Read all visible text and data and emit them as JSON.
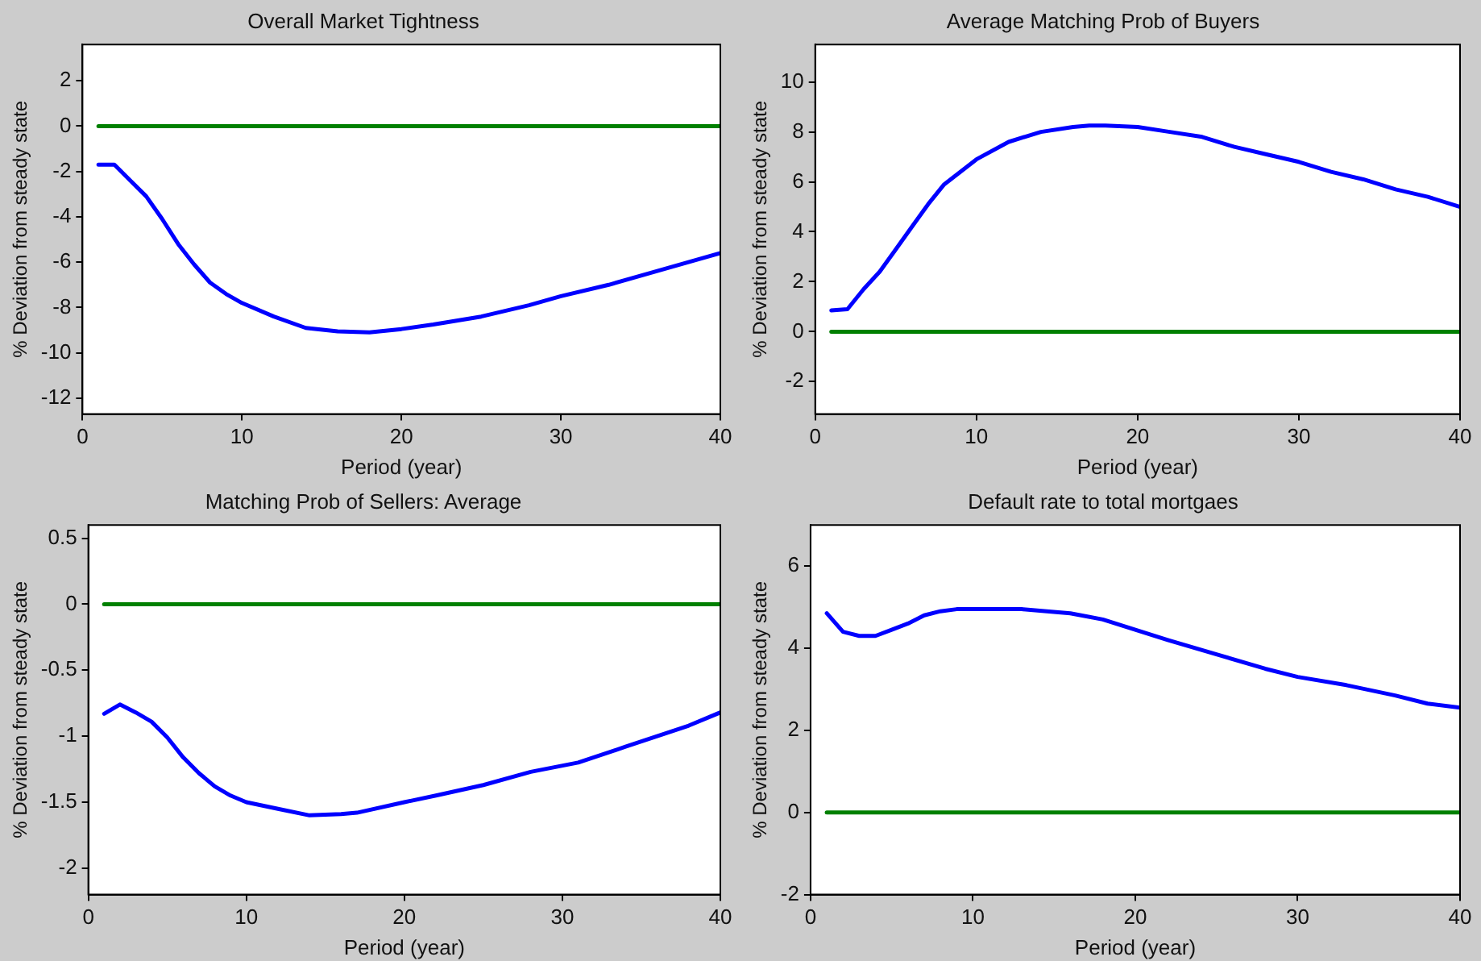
{
  "chart_data": [
    {
      "type": "line",
      "title": "Overall Market Tightness",
      "xlabel": "Period (year)",
      "ylabel": "% Deviation from steady state",
      "xlim": [
        0,
        40
      ],
      "xticks": [
        0,
        10,
        20,
        30,
        40
      ],
      "ylim": [
        -12.7,
        3.6
      ],
      "yticks": [
        -12,
        -10,
        -8,
        -6,
        -4,
        -2,
        0,
        2
      ],
      "grid": false,
      "legend": false,
      "marker": "none",
      "line_style": "solid",
      "series": [
        {
          "color": "#0000ff",
          "x": [
            1,
            2,
            3,
            4,
            5,
            6,
            7,
            8,
            9,
            10,
            12,
            14,
            16,
            18,
            20,
            22,
            25,
            28,
            30,
            33,
            36,
            38,
            40
          ],
          "values": [
            -1.7,
            -1.7,
            -2.4,
            -3.1,
            -4.1,
            -5.2,
            -6.1,
            -6.9,
            -7.4,
            -7.8,
            -8.4,
            -8.9,
            -9.05,
            -9.1,
            -8.95,
            -8.75,
            -8.4,
            -7.9,
            -7.5,
            -7.0,
            -6.4,
            -6.0,
            -5.6
          ]
        },
        {
          "color": "#008000",
          "x": [
            1,
            40
          ],
          "values": [
            0,
            0
          ]
        }
      ]
    },
    {
      "type": "line",
      "title": "Average Matching Prob of Buyers",
      "xlabel": "Period (year)",
      "ylabel": "% Deviation from steady state",
      "xlim": [
        0,
        40
      ],
      "xticks": [
        0,
        10,
        20,
        30,
        40
      ],
      "ylim": [
        -3.3,
        11.5
      ],
      "yticks": [
        -2,
        0,
        2,
        4,
        6,
        8,
        10
      ],
      "grid": false,
      "legend": false,
      "marker": "none",
      "line_style": "solid",
      "series": [
        {
          "color": "#0000ff",
          "x": [
            1,
            2,
            3,
            4,
            5,
            6,
            7,
            8,
            9,
            10,
            12,
            14,
            16,
            17,
            18,
            20,
            22,
            24,
            26,
            28,
            30,
            32,
            34,
            36,
            38,
            40
          ],
          "values": [
            0.85,
            0.9,
            1.7,
            2.4,
            3.3,
            4.2,
            5.1,
            5.9,
            6.4,
            6.9,
            7.6,
            8.0,
            8.2,
            8.25,
            8.25,
            8.2,
            8.0,
            7.8,
            7.4,
            7.1,
            6.8,
            6.4,
            6.1,
            5.7,
            5.4,
            5.0
          ]
        },
        {
          "color": "#008000",
          "x": [
            1,
            40
          ],
          "values": [
            0,
            0
          ]
        }
      ]
    },
    {
      "type": "line",
      "title": "Matching Prob of Sellers: Average",
      "xlabel": "Period (year)",
      "ylabel": "% Deviation from steady state",
      "xlim": [
        0,
        40
      ],
      "xticks": [
        0,
        10,
        20,
        30,
        40
      ],
      "ylim": [
        -2.2,
        0.6
      ],
      "yticks": [
        -2,
        -1.5,
        -1,
        -0.5,
        0,
        0.5
      ],
      "grid": false,
      "legend": false,
      "marker": "none",
      "line_style": "solid",
      "series": [
        {
          "color": "#0000ff",
          "x": [
            1,
            2,
            3,
            4,
            5,
            6,
            7,
            8,
            9,
            10,
            12,
            14,
            16,
            17,
            20,
            22,
            25,
            28,
            31,
            34,
            36,
            38,
            40
          ],
          "values": [
            -0.83,
            -0.76,
            -0.82,
            -0.89,
            -1.01,
            -1.16,
            -1.28,
            -1.38,
            -1.45,
            -1.5,
            -1.55,
            -1.6,
            -1.59,
            -1.58,
            -1.5,
            -1.45,
            -1.37,
            -1.27,
            -1.2,
            -1.08,
            -1.0,
            -0.92,
            -0.82
          ]
        },
        {
          "color": "#008000",
          "x": [
            1,
            40
          ],
          "values": [
            0,
            0
          ]
        }
      ]
    },
    {
      "type": "line",
      "title": "Default rate to total mortgaes",
      "xlabel": "Period (year)",
      "ylabel": "% Deviation from steady state",
      "xlim": [
        0,
        40
      ],
      "xticks": [
        0,
        10,
        20,
        30,
        40
      ],
      "ylim": [
        -2,
        7
      ],
      "yticks": [
        -2,
        0,
        2,
        4,
        6
      ],
      "grid": false,
      "legend": false,
      "marker": "none",
      "line_style": "solid",
      "series": [
        {
          "color": "#0000ff",
          "x": [
            1,
            2,
            3,
            4,
            5,
            6,
            7,
            8,
            9,
            10,
            13,
            16,
            18,
            20,
            22,
            25,
            28,
            30,
            33,
            36,
            38,
            40
          ],
          "values": [
            4.85,
            4.4,
            4.3,
            4.3,
            4.45,
            4.6,
            4.8,
            4.9,
            4.95,
            4.95,
            4.95,
            4.85,
            4.7,
            4.45,
            4.2,
            3.85,
            3.5,
            3.3,
            3.1,
            2.85,
            2.65,
            2.55
          ]
        },
        {
          "color": "#008000",
          "x": [
            1,
            40
          ],
          "values": [
            0,
            0
          ]
        }
      ]
    }
  ]
}
